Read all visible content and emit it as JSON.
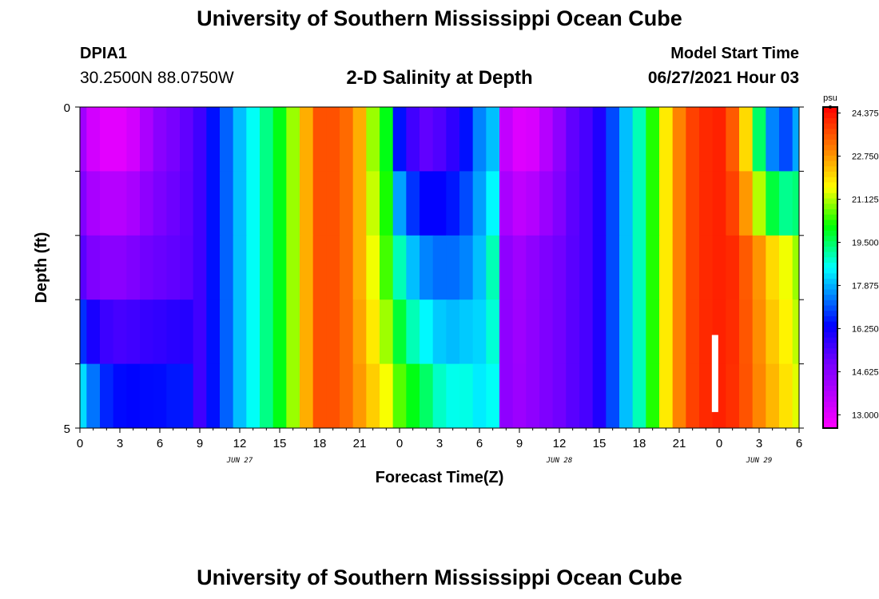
{
  "header": {
    "title": "University of Southern Mississippi Ocean Cube",
    "station_name": "DPIA1",
    "station_coords": "30.2500N  88.0750W",
    "subtitle": "2-D Salinity at Depth",
    "model_start_label": "Model Start Time",
    "model_start_value": "06/27/2021 Hour 03"
  },
  "footer": {
    "title": "University of Southern Mississippi Ocean Cube"
  },
  "chart_data": {
    "type": "heatmap",
    "title": "2-D Salinity at Depth",
    "xlabel": "Forecast Time(Z)",
    "ylabel": "Depth (ft)",
    "x_ticks": [
      "0",
      "3",
      "6",
      "9",
      "12",
      "15",
      "18",
      "21",
      "0",
      "3",
      "6",
      "9",
      "12",
      "15",
      "18",
      "21",
      "0",
      "3",
      "6"
    ],
    "x_date_labels": [
      {
        "label": "JUN 27",
        "hour_index": 12
      },
      {
        "label": "JUN 28",
        "hour_index": 36
      },
      {
        "label": "JUN 29",
        "hour_index": 51
      }
    ],
    "x_range_hours": [
      0,
      54
    ],
    "y_ticks": [
      "0",
      "5"
    ],
    "y_range": [
      0,
      5
    ],
    "depth_levels": [
      0,
      1,
      2,
      3,
      4,
      5
    ],
    "colorbar": {
      "unit": "psu",
      "min": 12.5,
      "max": 24.6,
      "tick_labels": [
        "24.375",
        "22.750",
        "21.125",
        "19.500",
        "17.875",
        "16.250",
        "14.625",
        "13.000"
      ],
      "tick_values": [
        24.375,
        22.75,
        21.125,
        19.5,
        17.875,
        16.25,
        14.625,
        13.0
      ]
    },
    "profiles": {
      "hours": [
        0,
        1,
        2,
        3,
        4,
        5,
        6,
        7,
        8,
        9,
        10,
        11,
        12,
        13,
        14,
        15,
        16,
        17,
        18,
        19,
        20,
        21,
        22,
        23,
        24,
        25,
        26,
        27,
        28,
        29,
        30,
        31,
        32,
        33,
        34,
        35,
        36,
        37,
        38,
        39,
        40,
        41,
        42,
        43,
        44,
        45,
        46,
        47,
        48,
        49,
        50,
        51,
        52,
        53,
        54
      ],
      "surface": [
        14.2,
        13.3,
        13.0,
        13.0,
        13.3,
        14.0,
        14.6,
        14.9,
        15.2,
        15.6,
        16.5,
        17.2,
        18.0,
        18.6,
        19.3,
        20.0,
        21.0,
        22.5,
        23.6,
        23.6,
        23.3,
        22.5,
        21.0,
        20.0,
        16.5,
        15.6,
        15.2,
        15.4,
        15.8,
        16.5,
        17.5,
        18.0,
        13.6,
        13.1,
        13.2,
        13.8,
        14.5,
        15.2,
        15.5,
        16.0,
        17.0,
        18.0,
        19.0,
        20.3,
        21.8,
        23.0,
        23.8,
        24.1,
        24.2,
        23.5,
        22.0,
        19.5,
        17.5,
        17.0,
        17.8
      ],
      "mid": [
        15.3,
        14.8,
        14.6,
        14.6,
        14.8,
        15.0,
        15.1,
        15.2,
        15.3,
        15.6,
        16.5,
        17.2,
        18.0,
        18.6,
        19.3,
        20.0,
        21.0,
        22.5,
        23.6,
        23.6,
        23.3,
        22.5,
        21.5,
        20.5,
        19.0,
        18.0,
        17.5,
        17.3,
        17.3,
        17.5,
        18.0,
        19.0,
        14.5,
        14.2,
        14.5,
        14.8,
        15.0,
        15.3,
        15.5,
        16.0,
        17.0,
        18.0,
        19.0,
        20.3,
        21.8,
        23.0,
        23.8,
        24.1,
        24.2,
        24.1,
        23.5,
        22.8,
        22.0,
        21.5,
        21.0
      ],
      "bottom": [
        19.0,
        18.0,
        17.2,
        16.9,
        16.8,
        16.8,
        16.8,
        16.9,
        16.9,
        15.6,
        16.5,
        17.2,
        18.0,
        18.6,
        19.3,
        20.0,
        21.0,
        22.5,
        23.6,
        23.6,
        23.3,
        22.8,
        22.3,
        21.8,
        21.0,
        20.5,
        20.0,
        19.3,
        19.0,
        19.0,
        18.5,
        18.5,
        14.5,
        14.3,
        14.5,
        14.8,
        15.0,
        15.3,
        15.5,
        16.0,
        17.0,
        18.0,
        19.0,
        20.3,
        21.8,
        23.0,
        23.8,
        24.1,
        24.2,
        24.0,
        23.6,
        23.0,
        22.5,
        22.0,
        21.5
      ]
    }
  }
}
